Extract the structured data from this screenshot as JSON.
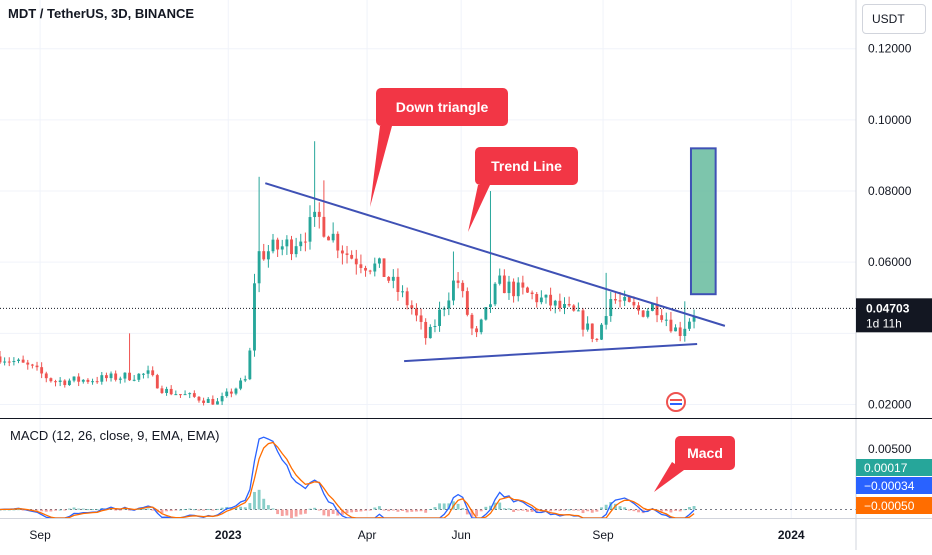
{
  "header": {
    "title": "MDT / TetherUS, 3D, BINANCE",
    "currency_button": "USDT"
  },
  "colors": {
    "up": "#26a69a",
    "down": "#ef5350",
    "trendline": "#3f51b5",
    "callout": "#f23645",
    "target_box": "#66bb9d",
    "macd_line": "#2962ff",
    "signal_line": "#ff6d00",
    "price_tag": "#131722"
  },
  "chart_data": [
    {
      "type": "candlestick",
      "title": "MDT / TetherUS, 3D, BINANCE",
      "x_range": [
        "2022-08-06",
        "2024-02-12"
      ],
      "ylim": [
        0.0162,
        0.1337
      ],
      "y_ticks": [
        "0.12000",
        "0.10000",
        "0.08000",
        "0.06000",
        "0.02000"
      ],
      "x_ticks": [
        {
          "label": "Sep",
          "date": "2022-09-01"
        },
        {
          "label": "2023",
          "date": "2023-01-01"
        },
        {
          "label": "Apr",
          "date": "2023-04-01"
        },
        {
          "label": "Jun",
          "date": "2023-06-01"
        },
        {
          "label": "Sep",
          "date": "2023-09-01"
        },
        {
          "label": "2024",
          "date": "2024-01-01"
        }
      ],
      "key_points": [
        {
          "date": "2022-08-06",
          "close": 0.0335
        },
        {
          "date": "2022-08-25",
          "close": 0.0305
        },
        {
          "date": "2022-09-10",
          "close": 0.0265
        },
        {
          "date": "2022-10-05",
          "close": 0.027
        },
        {
          "date": "2022-11-10",
          "close": 0.0285
        },
        {
          "date": "2022-11-20",
          "close": 0.024
        },
        {
          "date": "2022-12-25",
          "close": 0.0205
        },
        {
          "date": "2023-01-14",
          "close": 0.0275
        },
        {
          "date": "2023-01-19",
          "close": 0.062
        },
        {
          "date": "2023-02-10",
          "close": 0.065
        },
        {
          "date": "2023-03-01",
          "close": 0.072
        },
        {
          "date": "2023-03-20",
          "close": 0.062
        },
        {
          "date": "2023-04-10",
          "close": 0.058
        },
        {
          "date": "2023-04-30",
          "close": 0.047
        },
        {
          "date": "2023-05-10",
          "close": 0.038
        },
        {
          "date": "2023-05-29",
          "close": 0.056
        },
        {
          "date": "2023-06-10",
          "close": 0.038
        },
        {
          "date": "2023-06-25",
          "close": 0.054
        },
        {
          "date": "2023-07-20",
          "close": 0.05
        },
        {
          "date": "2023-08-15",
          "close": 0.045
        },
        {
          "date": "2023-08-28",
          "close": 0.038
        },
        {
          "date": "2023-09-05",
          "close": 0.05
        },
        {
          "date": "2023-09-25",
          "close": 0.046
        },
        {
          "date": "2023-10-05",
          "close": 0.048
        },
        {
          "date": "2023-10-20",
          "close": 0.04
        },
        {
          "date": "2023-11-01",
          "close": 0.047
        }
      ],
      "spikes": [
        {
          "date": "2022-10-28",
          "high": 0.04
        },
        {
          "date": "2023-01-20",
          "high": 0.084
        },
        {
          "date": "2023-02-27",
          "high": 0.094
        },
        {
          "date": "2023-03-03",
          "high": 0.083
        },
        {
          "date": "2023-05-28",
          "high": 0.063
        },
        {
          "date": "2023-06-20",
          "high": 0.08
        },
        {
          "date": "2023-09-03",
          "high": 0.057
        },
        {
          "date": "2023-10-25",
          "high": 0.049
        }
      ],
      "last_price": "0.04703",
      "countdown": "1d 11h",
      "drawings": {
        "down_trendline": {
          "from": {
            "date": "2023-01-25",
            "price": 0.0822
          },
          "to": {
            "date": "2023-11-19",
            "price": 0.0421
          }
        },
        "support_line": {
          "from": {
            "date": "2023-04-25",
            "price": 0.0322
          },
          "to": {
            "date": "2023-11-01",
            "price": 0.037
          }
        },
        "target_box": {
          "from_date": "2023-10-28",
          "to_date": "2023-11-13",
          "low": 0.051,
          "high": 0.092
        }
      },
      "annotations": [
        "Down triangle",
        "Trend Line"
      ]
    },
    {
      "type": "macd",
      "title": "MACD (12, 26, close, 9, EMA, EMA)",
      "ylim": [
        -0.0007,
        0.0075
      ],
      "y_ticks": [
        "0.00500"
      ],
      "values": {
        "histogram": "0.00017",
        "macd": "−0.00034",
        "signal": "−0.00050"
      },
      "annotations": [
        "Macd"
      ]
    }
  ]
}
